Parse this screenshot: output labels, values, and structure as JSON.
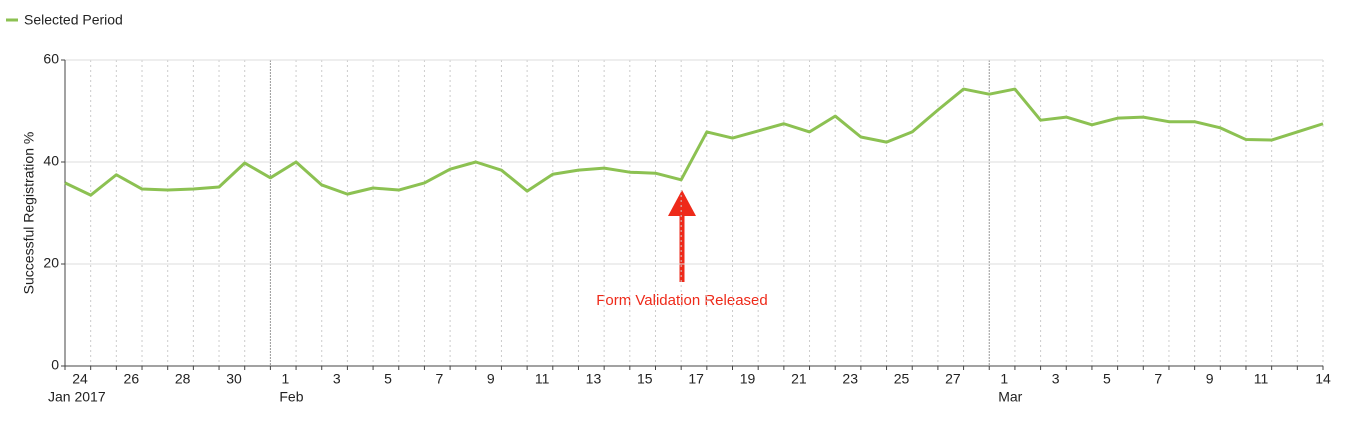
{
  "chart_data": {
    "type": "line",
    "legend": "Selected Period",
    "y_label": "Successful Registration %",
    "annotation": "Form Validation Released",
    "categories": [
      "24",
      null,
      "26",
      null,
      "28",
      null,
      "30",
      null,
      "1",
      null,
      "3",
      null,
      "5",
      null,
      "7",
      null,
      "9",
      null,
      "11",
      null,
      "13",
      null,
      "15",
      null,
      "17",
      null,
      "19",
      null,
      "21",
      null,
      "23",
      null,
      "25",
      null,
      "27",
      null,
      "1",
      null,
      "3",
      null,
      "5",
      null,
      "7",
      null,
      "9",
      null,
      "11",
      null,
      null,
      "14"
    ],
    "category_groups": [
      "Jan 2017",
      null,
      null,
      null,
      null,
      null,
      null,
      null,
      "Feb",
      null,
      null,
      null,
      null,
      null,
      null,
      null,
      null,
      null,
      null,
      null,
      null,
      null,
      null,
      null,
      null,
      null,
      null,
      null,
      null,
      null,
      null,
      null,
      null,
      null,
      null,
      null,
      "Mar",
      null,
      null,
      null,
      null,
      null,
      null,
      null,
      null,
      null,
      null,
      null,
      null,
      null
    ],
    "series": [
      {
        "name": "Selected Period",
        "color": "#8cc152",
        "values": [
          35.9,
          33.5,
          37.5,
          34.7,
          34.5,
          34.7,
          35.1,
          39.8,
          36.9,
          40,
          35.5,
          33.7,
          34.9,
          34.5,
          35.9,
          38.6,
          40,
          38.4,
          34.3,
          37.6,
          38.4,
          38.8,
          38,
          37.8,
          36.5,
          45.9,
          44.7,
          46.1,
          47.5,
          45.9,
          49,
          44.9,
          43.9,
          45.9,
          50.2,
          54.3,
          53.3,
          54.3,
          48.2,
          48.8,
          47.3,
          48.6,
          48.8,
          47.9,
          47.9,
          46.7,
          44.4,
          44.3,
          45.9,
          47.5
        ]
      }
    ],
    "ylim": [
      0,
      60
    ],
    "yticks": [
      0,
      20,
      40,
      60
    ],
    "grid": true
  }
}
